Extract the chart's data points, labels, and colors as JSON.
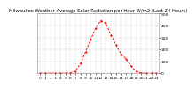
{
  "title": "Milwaukee Weather Average Solar Radiation per Hour W/m2 (Last 24 Hours)",
  "hours": [
    0,
    1,
    2,
    3,
    4,
    5,
    6,
    7,
    8,
    9,
    10,
    11,
    12,
    13,
    14,
    15,
    16,
    17,
    18,
    19,
    20,
    21,
    22,
    23
  ],
  "values": [
    0,
    0,
    0,
    0,
    0,
    0,
    2,
    18,
    80,
    180,
    280,
    380,
    440,
    420,
    320,
    240,
    160,
    120,
    60,
    15,
    2,
    0,
    0,
    0
  ],
  "ylim": [
    0,
    500
  ],
  "yticks": [
    0,
    100,
    200,
    300,
    400,
    500
  ],
  "line_color": "#ff0000",
  "bg_color": "#ffffff",
  "grid_color": "#aaaaaa",
  "title_fontsize": 3.8,
  "tick_fontsize": 3.2,
  "line_width": 0.7,
  "marker_size": 1.2
}
